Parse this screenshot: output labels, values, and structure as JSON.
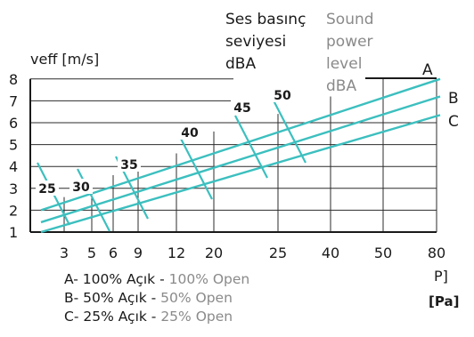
{
  "chart_data": {
    "type": "line",
    "ylabel": "veff [m/s]",
    "y_ticks": [
      "1",
      "2",
      "3",
      "4",
      "5",
      "6",
      "7",
      "8"
    ],
    "x_ticks": [
      "3",
      "5",
      "6",
      "9",
      "12",
      "20",
      "25",
      "40",
      "50",
      "80"
    ],
    "xlabel": "P]",
    "xunit": "[Pa]",
    "ylim": [
      1,
      8
    ],
    "db_title_tr": [
      "Ses basınç",
      "seviyesi",
      "dBA"
    ],
    "db_title_en": [
      "Sound",
      "power",
      "level",
      "dBA"
    ],
    "db_levels": [
      "25",
      "30",
      "35",
      "40",
      "45",
      "50"
    ],
    "series": [
      {
        "name": "A",
        "label": "A",
        "color": "#3cbfbf",
        "points": [
          [
            2,
            2.0
          ],
          [
            80,
            8.0
          ]
        ]
      },
      {
        "name": "B",
        "label": "B",
        "color": "#3cbfbf",
        "points": [
          [
            2,
            1.45
          ],
          [
            80,
            7.2
          ]
        ]
      },
      {
        "name": "C",
        "label": "C",
        "color": "#3cbfbf",
        "points": [
          [
            2,
            1.0
          ],
          [
            80,
            6.35
          ]
        ]
      }
    ],
    "grid": true,
    "legend": {
      "items": [
        {
          "key": "A- 100% Açık - ",
          "en": "100% Open"
        },
        {
          "key": "B- 50% Açık - ",
          "en": "50% Open"
        },
        {
          "key": "C- 25% Açık - ",
          "en": "25% Open"
        }
      ]
    }
  }
}
